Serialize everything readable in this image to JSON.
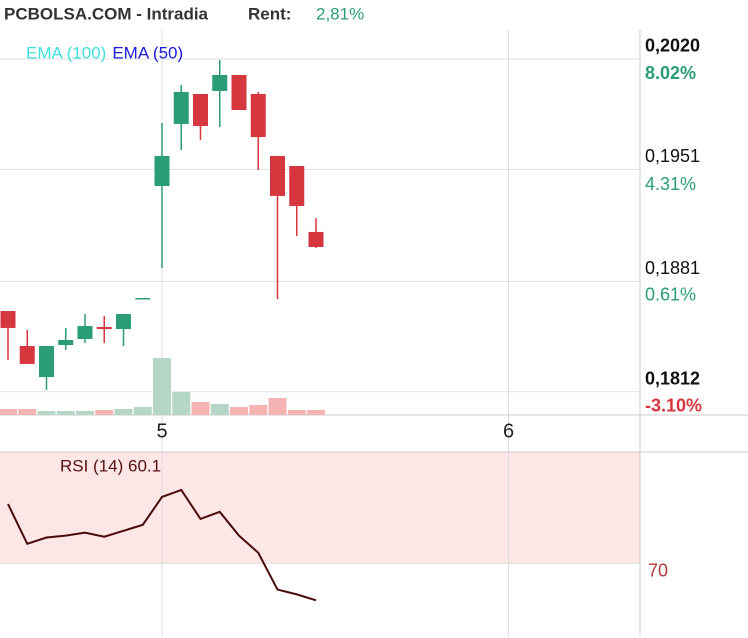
{
  "chart_data": {
    "type": "candlestick",
    "title": "PCBOLSA.COM - Intradia",
    "rent_label": "Rent:",
    "rent_value": "2,81%",
    "ema_legend": [
      {
        "name": "EMA (100)",
        "color": "#3ee0e0"
      },
      {
        "name": "EMA (50)",
        "color": "#1a1ad8"
      }
    ],
    "categories": [
      null,
      null,
      null,
      null,
      null,
      null,
      null,
      null,
      "5",
      null,
      null,
      null,
      null,
      null,
      null,
      null,
      null,
      null,
      null,
      null,
      null,
      null,
      null,
      null,
      null,
      null,
      "6"
    ],
    "open": [
      0.18625,
      0.18406,
      0.18212,
      0.18412,
      0.1845,
      0.18525,
      0.18512,
      0.18706,
      0.19406,
      0.19794,
      0.19981,
      0.2,
      0.201,
      0.19981,
      0.19594,
      0.19531,
      0.19119,
      null,
      null,
      null,
      null,
      null,
      null,
      null,
      null,
      null,
      null
    ],
    "high": [
      0.18625,
      0.18506,
      0.18406,
      0.18519,
      0.18606,
      0.18594,
      0.18606,
      0.18706,
      0.198,
      0.20037,
      0.19981,
      0.20194,
      0.201,
      0.19994,
      0.19594,
      0.19531,
      0.19206,
      null,
      null,
      null,
      null,
      null,
      null,
      null,
      null,
      null,
      null
    ],
    "low": [
      0.18319,
      0.18294,
      0.18131,
      0.18381,
      0.18425,
      0.18425,
      0.18406,
      0.18706,
      0.18894,
      0.19631,
      0.19694,
      0.19775,
      0.19881,
      0.19506,
      0.187,
      0.19094,
      0.19019,
      null,
      null,
      null,
      null,
      null,
      null,
      null,
      null,
      null,
      null
    ],
    "close": [
      0.18519,
      0.18294,
      0.18406,
      0.18444,
      0.18531,
      0.18512,
      0.18606,
      0.18706,
      0.19594,
      0.19994,
      0.19781,
      0.201,
      0.19881,
      0.19712,
      0.19344,
      0.19281,
      0.19025,
      null,
      null,
      null,
      null,
      null,
      null,
      null,
      null,
      null,
      null
    ],
    "up_color": "#2a9d76",
    "down_color": "#d6373e",
    "volume": [
      6,
      6,
      4,
      4,
      4,
      5,
      6,
      8,
      57,
      23,
      13,
      11,
      8,
      10,
      17,
      5,
      5,
      null,
      null,
      null,
      null,
      null,
      null,
      null,
      null,
      null,
      null
    ],
    "volume_ylim": [
      0,
      100
    ],
    "volume_up_color": "#b6d6c6",
    "volume_down_color": "#f5b4b4",
    "ylim": [
      0.17975,
      0.20381
    ],
    "yticks": [
      {
        "value": 0.202,
        "label": "0,2020"
      },
      {
        "value": 0.1951,
        "label": "0,1951"
      },
      {
        "value": 0.1881,
        "label": "0,1881"
      },
      {
        "value": 0.1812,
        "label": "0,1812"
      }
    ],
    "y2lim": [
      -3.88,
      8.99
    ],
    "y2ticks": [
      {
        "value": 8.02,
        "label": "8.02%"
      },
      {
        "value": 4.31,
        "label": "4.31%"
      },
      {
        "value": 0.61,
        "label": "0.61%"
      },
      {
        "value": -3.1,
        "label": "-3.10%"
      }
    ],
    "grid": true,
    "rsi": {
      "title": "RSI (14) 60.1",
      "color": "#4a0a0a",
      "band_color": "#fde6e6",
      "values": [
        86.0,
        75.3,
        77.0,
        77.5,
        78.3,
        77.2,
        78.8,
        80.4,
        87.9,
        89.8,
        82.0,
        83.9,
        77.5,
        72.9,
        63.0,
        61.7,
        60.1,
        null,
        null,
        null,
        null,
        null,
        null,
        null,
        null,
        null,
        null
      ],
      "ylim": [
        50.5,
        100
      ],
      "yticks": [
        70
      ]
    }
  }
}
